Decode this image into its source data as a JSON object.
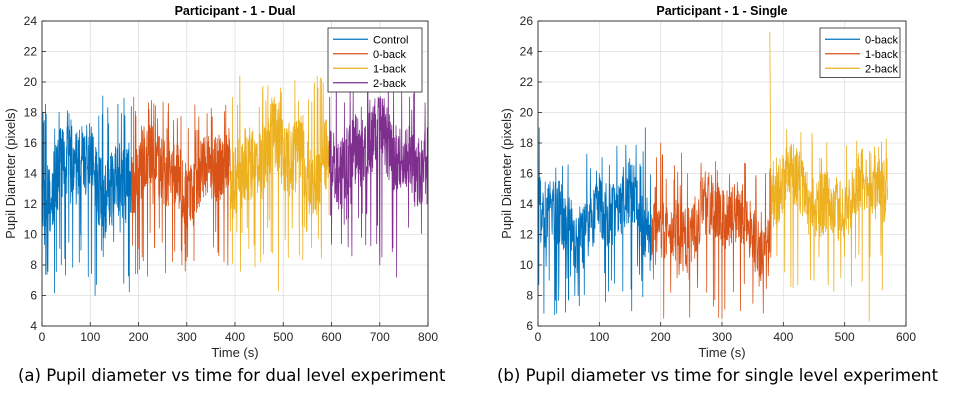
{
  "chart_data": [
    {
      "type": "line",
      "title": "Participant - 1 - Dual",
      "xlabel": "Time (s)",
      "ylabel": "Pupil Diameter (pixels)",
      "xlim": [
        0,
        800
      ],
      "ylim": [
        4,
        24
      ],
      "xticks": [
        0,
        100,
        200,
        300,
        400,
        500,
        600,
        700,
        800
      ],
      "yticks": [
        4,
        6,
        8,
        10,
        12,
        14,
        16,
        18,
        20,
        22,
        24
      ],
      "grid": true,
      "legend_position": "top-right",
      "series": [
        {
          "name": "Control",
          "color": "#0072BD",
          "x_range": [
            0,
            185
          ],
          "mean": 13.8,
          "amplitude": 4.5,
          "seed": 11,
          "key_points": [
            [
              2,
              18
            ],
            [
              45,
              16
            ],
            [
              80,
              10
            ],
            [
              110,
              6
            ],
            [
              150,
              12
            ],
            [
              180,
              16
            ]
          ]
        },
        {
          "name": "0-back",
          "color": "#D95319",
          "x_range": [
            185,
            390
          ],
          "mean": 14.0,
          "amplitude": 4.0,
          "seed": 23,
          "key_points": [
            [
              190,
              19
            ],
            [
              230,
              12
            ],
            [
              290,
              8
            ],
            [
              350,
              14
            ],
            [
              388,
              16
            ]
          ]
        },
        {
          "name": "1-back",
          "color": "#EDB120",
          "x_range": [
            390,
            595
          ],
          "mean": 15.0,
          "amplitude": 4.5,
          "seed": 37,
          "key_points": [
            [
              395,
              19
            ],
            [
              410,
              20.4
            ],
            [
              440,
              11
            ],
            [
              490,
              6.3
            ],
            [
              550,
              14
            ],
            [
              590,
              16
            ]
          ]
        },
        {
          "name": "2-back",
          "color": "#7E2F8E",
          "x_range": [
            595,
            800
          ],
          "mean": 15.5,
          "amplitude": 4.2,
          "seed": 53,
          "key_points": [
            [
              610,
              22.8
            ],
            [
              640,
              12
            ],
            [
              700,
              8
            ],
            [
              735,
              7.2
            ],
            [
              770,
              16
            ],
            [
              798,
              12
            ]
          ]
        }
      ]
    },
    {
      "type": "line",
      "title": "Participant - 1 - Single",
      "xlabel": "Time (s)",
      "ylabel": "Pupil Diameter (pixels)",
      "xlim": [
        0,
        600
      ],
      "ylim": [
        6,
        26
      ],
      "xticks": [
        0,
        100,
        200,
        300,
        400,
        500,
        600
      ],
      "yticks": [
        6,
        8,
        10,
        12,
        14,
        16,
        18,
        20,
        22,
        24,
        26
      ],
      "grid": true,
      "legend_position": "top-right",
      "series": [
        {
          "name": "0-back",
          "color": "#0072BD",
          "x_range": [
            0,
            185
          ],
          "mean": 13.2,
          "amplitude": 4.0,
          "seed": 71,
          "key_points": [
            [
              2,
              19
            ],
            [
              60,
              8
            ],
            [
              120,
              9
            ],
            [
              175,
              19
            ]
          ]
        },
        {
          "name": "1-back",
          "color": "#D95319",
          "x_range": [
            185,
            380
          ],
          "mean": 12.8,
          "amplitude": 3.8,
          "seed": 83,
          "key_points": [
            [
              200,
              18
            ],
            [
              260,
              8.5
            ],
            [
              300,
              6.5
            ],
            [
              330,
              7
            ],
            [
              378,
              16
            ]
          ]
        },
        {
          "name": "2-back",
          "color": "#EDB120",
          "x_range": [
            380,
            570
          ],
          "mean": 14.5,
          "amplitude": 3.8,
          "seed": 97,
          "key_points": [
            [
              378,
              25.3
            ],
            [
              400,
              17
            ],
            [
              450,
              9
            ],
            [
              500,
              13
            ],
            [
              540,
              6.3
            ],
            [
              570,
              15
            ]
          ]
        }
      ]
    }
  ],
  "captions": {
    "a": "(a) Pupil diameter vs time for dual level experiment",
    "b": "(b) Pupil diameter vs time for single level experiment"
  }
}
